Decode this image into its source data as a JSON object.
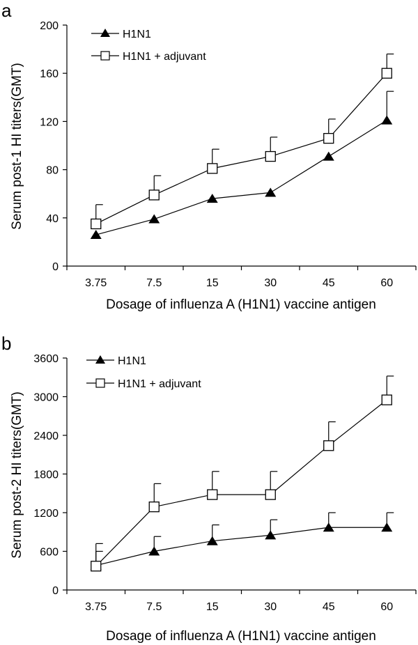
{
  "chart_data": [
    {
      "type": "line",
      "panel_label": "a",
      "xlabel": "Dosage of influenza A (H1N1) vaccine antigen",
      "ylabel": "Serum post-1 HI titers(GMT)",
      "categories": [
        "3.75",
        "7.5",
        "15",
        "30",
        "45",
        "60"
      ],
      "ylim": [
        0,
        200
      ],
      "yticks": [
        0,
        40,
        80,
        120,
        160,
        200
      ],
      "grid": false,
      "legend_position": "top-left",
      "series": [
        {
          "name": "H1N1",
          "marker": "filled-triangle",
          "values": [
            26,
            39,
            56,
            61,
            91,
            121
          ],
          "error": [
            0,
            0,
            0,
            0,
            0,
            24
          ]
        },
        {
          "name": "H1N1 + adjuvant",
          "marker": "open-square",
          "values": [
            35,
            59,
            81,
            91,
            106,
            160
          ],
          "error": [
            16,
            16,
            16,
            16,
            16,
            16
          ]
        }
      ]
    },
    {
      "type": "line",
      "panel_label": "b",
      "xlabel": "Dosage of influenza A (H1N1) vaccine antigen",
      "ylabel": "Serum post-2 HI titers(GMT)",
      "categories": [
        "3.75",
        "7.5",
        "15",
        "30",
        "45",
        "60"
      ],
      "ylim": [
        0,
        3600
      ],
      "yticks": [
        0,
        600,
        1200,
        1800,
        2400,
        3000,
        3600
      ],
      "grid": false,
      "legend_position": "top-left",
      "series": [
        {
          "name": "H1N1",
          "marker": "filled-triangle",
          "values": [
            380,
            600,
            760,
            850,
            970,
            970
          ],
          "error": [
            220,
            230,
            250,
            240,
            230,
            230
          ]
        },
        {
          "name": "H1N1 + adjuvant",
          "marker": "open-square",
          "values": [
            370,
            1290,
            1480,
            1480,
            2240,
            2950
          ],
          "error": [
            350,
            360,
            360,
            360,
            370,
            370
          ]
        }
      ]
    }
  ]
}
